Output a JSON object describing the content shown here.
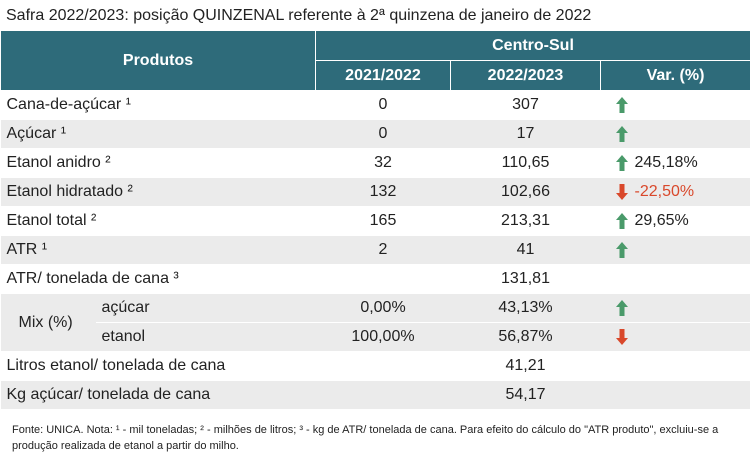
{
  "title": "Safra 2022/2023: posição QUINZENAL referente à 2ª quinzena de janeiro de 2022",
  "header": {
    "products": "Produtos",
    "region": "Centro-Sul",
    "columns": [
      "2021/2022",
      "2022/2023",
      "Var. (%)"
    ]
  },
  "rows": [
    {
      "label": "Cana-de-açúcar ¹",
      "a": "0",
      "b": "307",
      "trend": "up"
    },
    {
      "label": "Açúcar ¹",
      "a": "0",
      "b": "17",
      "trend": "up"
    },
    {
      "label": "Etanol anidro ²",
      "a": "32",
      "b": "110,65",
      "var": "245,18%",
      "trend": "up"
    },
    {
      "label": "Etanol hidratado ²",
      "a": "132",
      "b": "102,66",
      "var": "-22,50%",
      "trend": "down"
    },
    {
      "label": "Etanol total ²",
      "a": "165",
      "b": "213,31",
      "var": "29,65%",
      "trend": "up"
    },
    {
      "label": "ATR ¹",
      "a": "2",
      "b": "41",
      "trend": "up"
    },
    {
      "label": "ATR/ tonelada de cana ³",
      "b": "131,81"
    },
    {
      "group": "Mix (%)",
      "items": [
        {
          "label": "açúcar",
          "a": "0,00%",
          "b": "43,13%",
          "trend": "up"
        },
        {
          "label": "etanol",
          "a": "100,00%",
          "b": "56,87%",
          "trend": "down"
        }
      ]
    },
    {
      "label": "Litros etanol/ tonelada de cana",
      "b": "41,21"
    },
    {
      "label": "Kg açúcar/ tonelada de cana",
      "b": "54,17"
    }
  ],
  "footnote": "Fonte: UNICA. Nota: ¹ - mil toneladas; ² - milhões de litros; ³ - kg de ATR/ tonelada de cana. Para efeito do cálculo do \"ATR produto\", excluiu-se a produção realizada de etanol a partir do milho."
}
